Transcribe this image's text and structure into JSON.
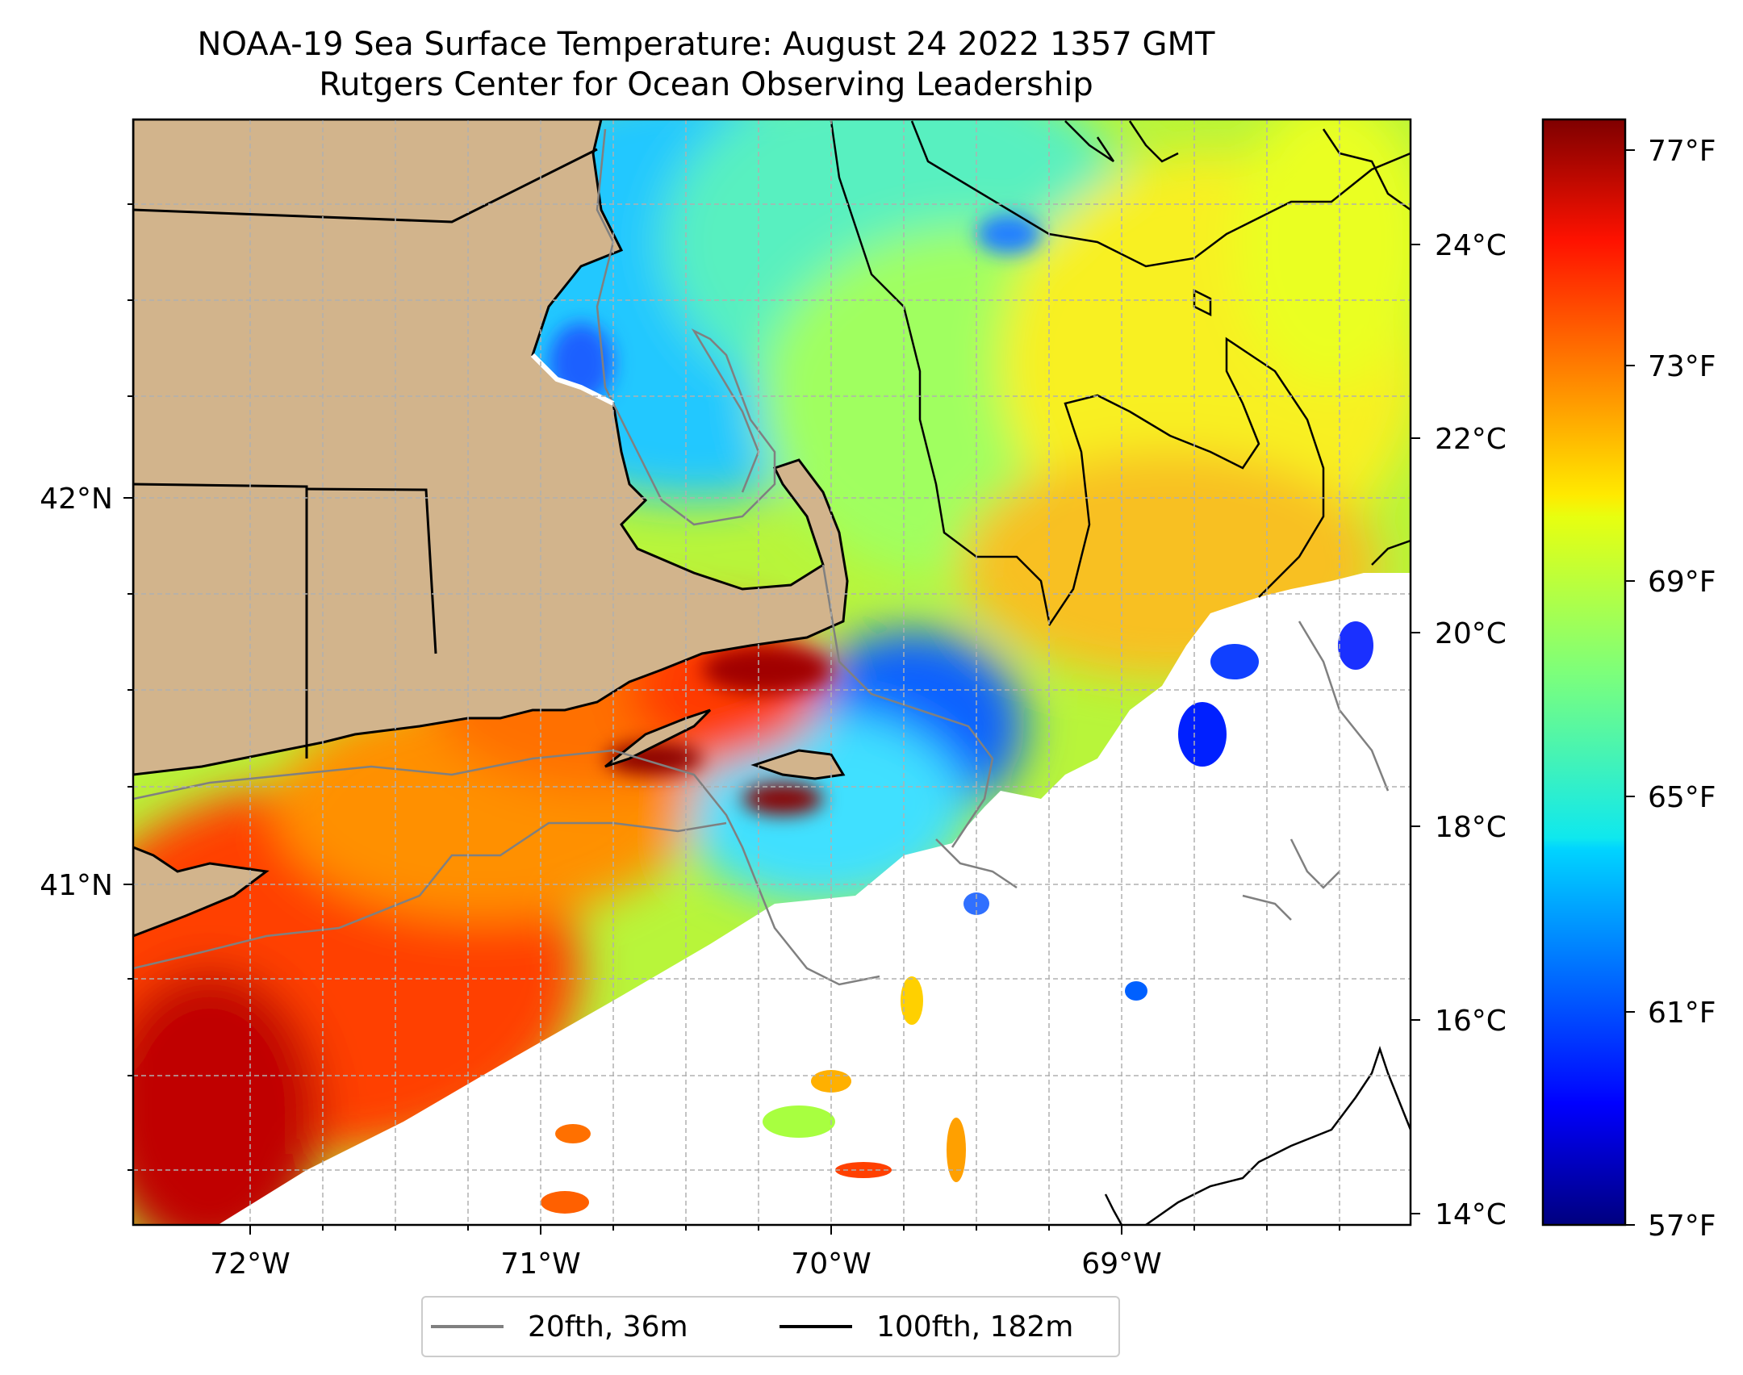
{
  "title": "NOAA-19 Sea Surface Temperature: August 24 2022 1357 GMT",
  "subtitle": "Rutgers Center for Ocean Observing Leadership",
  "axes": {
    "x_ticks": [
      "72°W",
      "71°W",
      "70°W",
      "69°W"
    ],
    "y_ticks": [
      "42°N",
      "41°N"
    ],
    "grid": true
  },
  "colorbar": {
    "colormap": "jet",
    "celsius_ticks": [
      "24°C",
      "22°C",
      "20°C",
      "18°C",
      "16°C",
      "14°C"
    ],
    "fahrenheit_ticks": [
      "77°F",
      "73°F",
      "69°F",
      "65°F",
      "61°F",
      "57°F"
    ],
    "range_celsius": [
      13.9,
      25.3
    ]
  },
  "legend": {
    "items": [
      {
        "label": "20fth, 36m",
        "color": "#808080"
      },
      {
        "label": "100fth, 182m",
        "color": "#000000"
      }
    ]
  },
  "colors": {
    "land": "#d2b48c",
    "no_data": "#ffffff",
    "coastline": "#000000",
    "isobath_20fth": "#808080",
    "isobath_100fth": "#000000"
  }
}
